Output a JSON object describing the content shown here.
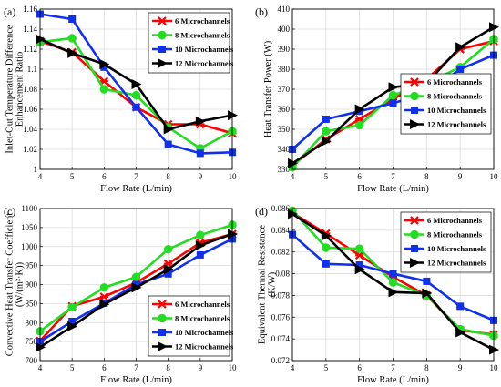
{
  "chart_data": [
    {
      "type": "line",
      "panel_label": "(a)",
      "x": [
        4,
        5,
        6,
        7,
        8,
        9,
        10
      ],
      "xlabel": "Flow Rate (L/min)",
      "ylabel_lines": [
        "Inlet-Out Temperature Difference",
        "Enhancement Ratio"
      ],
      "xlim": [
        4,
        10
      ],
      "ylim": [
        1.0,
        1.16
      ],
      "xticks": [
        4,
        5,
        6,
        7,
        8,
        9,
        10
      ],
      "yticks": [
        1.0,
        1.02,
        1.04,
        1.06,
        1.08,
        1.1,
        1.12,
        1.14,
        1.16
      ],
      "ytick_labels": [
        "1",
        "1.02",
        "1.04",
        "1.06",
        "1.08",
        "1.1",
        "1.12",
        "1.14",
        "1.16"
      ],
      "grid": true,
      "legend_position": "top-right",
      "series": [
        {
          "name": "6 Microchannels",
          "values": [
            1.128,
            1.117,
            1.088,
            1.062,
            1.045,
            1.045,
            1.036
          ]
        },
        {
          "name": "8 Microchannels",
          "values": [
            1.127,
            1.131,
            1.08,
            1.074,
            1.042,
            1.021,
            1.038
          ]
        },
        {
          "name": "10 Microchannels",
          "values": [
            1.155,
            1.15,
            1.102,
            1.062,
            1.025,
            1.016,
            1.017
          ]
        },
        {
          "name": "12 Microchannels",
          "values": [
            1.13,
            1.116,
            1.105,
            1.085,
            1.04,
            1.048,
            1.054
          ]
        }
      ]
    },
    {
      "type": "line",
      "panel_label": "(b)",
      "x": [
        4,
        5,
        6,
        7,
        8,
        9,
        10
      ],
      "xlabel": "Flow Rate (L/min)",
      "ylabel_lines": [
        "Heat Transfer Power (W)"
      ],
      "xlim": [
        4,
        10
      ],
      "ylim": [
        330,
        410
      ],
      "xticks": [
        4,
        5,
        6,
        7,
        8,
        9,
        10
      ],
      "yticks": [
        330,
        340,
        350,
        360,
        370,
        380,
        390,
        400,
        410
      ],
      "ytick_labels": [
        "330",
        "340",
        "350",
        "360",
        "370",
        "380",
        "390",
        "400",
        "410"
      ],
      "grid": true,
      "legend_position": "center-right",
      "series": [
        {
          "name": "6 Microchannels",
          "values": [
            332,
            345,
            355,
            365,
            375,
            390,
            394
          ]
        },
        {
          "name": "8 Microchannels",
          "values": [
            331,
            349,
            352,
            367,
            373,
            381,
            395
          ]
        },
        {
          "name": "10 Microchannels",
          "values": [
            340,
            355,
            359,
            363,
            368,
            380,
            387
          ]
        },
        {
          "name": "12 Microchannels",
          "values": [
            333,
            344,
            360,
            371,
            373,
            391,
            401
          ]
        }
      ]
    },
    {
      "type": "line",
      "panel_label": "(c)",
      "x": [
        4,
        5,
        6,
        7,
        8,
        9,
        10
      ],
      "xlabel": "Flow Rate (L/min)",
      "ylabel_lines": [
        "Convective Heat Transfer Coefficient",
        "(W/(m²·K))"
      ],
      "xlim": [
        4,
        10
      ],
      "ylim": [
        700,
        1100
      ],
      "xticks": [
        4,
        5,
        6,
        7,
        8,
        9,
        10
      ],
      "yticks": [
        700,
        750,
        800,
        850,
        900,
        950,
        1000,
        1050,
        1100
      ],
      "ytick_labels": [
        "700",
        "750",
        "800",
        "850",
        "900",
        "950",
        "1000",
        "1050",
        "1100"
      ],
      "grid": true,
      "legend_position": "bottom-right",
      "series": [
        {
          "name": "6 Microchannels",
          "values": [
            752,
            843,
            868,
            905,
            955,
            1010,
            1033
          ]
        },
        {
          "name": "8 Microchannels",
          "values": [
            777,
            840,
            892,
            920,
            993,
            1030,
            1057
          ]
        },
        {
          "name": "10 Microchannels",
          "values": [
            750,
            803,
            851,
            900,
            928,
            978,
            1020
          ]
        },
        {
          "name": "12 Microchannels",
          "values": [
            735,
            790,
            848,
            892,
            940,
            1003,
            1033
          ]
        }
      ]
    },
    {
      "type": "line",
      "panel_label": "(d)",
      "x": [
        4,
        5,
        6,
        7,
        8,
        9,
        10
      ],
      "xlabel": "Flow Rate (L/min)",
      "ylabel_lines": [
        "Equivalent Thermal Resistance",
        "(K/W)"
      ],
      "xlim": [
        4,
        10
      ],
      "ylim": [
        0.072,
        0.086
      ],
      "xticks": [
        4,
        5,
        6,
        7,
        8,
        9,
        10
      ],
      "yticks": [
        0.072,
        0.074,
        0.076,
        0.078,
        0.08,
        0.082,
        0.084,
        0.086
      ],
      "ytick_labels": [
        "0.072",
        "0.074",
        "0.076",
        "0.078",
        "0.08",
        "0.082",
        "0.084",
        "0.086"
      ],
      "grid": true,
      "legend_position": "top-right",
      "series": [
        {
          "name": "6 Microchannels",
          "values": [
            0.0856,
            0.0837,
            0.0817,
            0.0797,
            0.078,
            0.0748,
            0.0744
          ]
        },
        {
          "name": "8 Microchannels",
          "values": [
            0.0858,
            0.0824,
            0.0823,
            0.0792,
            0.078,
            0.0749,
            0.0743
          ]
        },
        {
          "name": "10 Microchannels",
          "values": [
            0.0836,
            0.0809,
            0.0808,
            0.08,
            0.0793,
            0.077,
            0.0757
          ]
        },
        {
          "name": "12 Microchannels",
          "values": [
            0.0855,
            0.0835,
            0.0804,
            0.0783,
            0.0782,
            0.0746,
            0.073
          ]
        }
      ]
    }
  ],
  "series_colors": [
    "#ff0000",
    "#22dd22",
    "#1030ee",
    "#000000"
  ],
  "series_markers": [
    "x-star",
    "circle",
    "square",
    "triangle-right"
  ]
}
